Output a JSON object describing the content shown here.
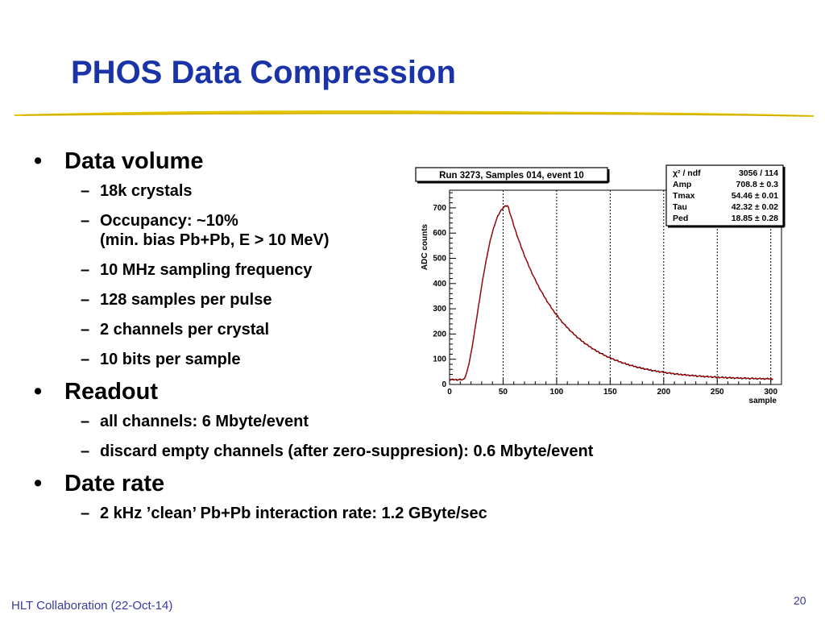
{
  "slide": {
    "title": "PHOS Data Compression",
    "footer": "HLT Collaboration (22-Oct-14)",
    "page_number": "20",
    "accent_color": "#1a34a8",
    "rule_color": "#e0b800"
  },
  "bullets": [
    {
      "text": "Data volume",
      "sub": [
        "18k crystals",
        "Occupancy: ~10%",
        "(min. bias Pb+Pb, E > 10 MeV)",
        "10 MHz sampling frequency",
        "128 samples per pulse",
        "2 channels per crystal",
        "10 bits per sample"
      ]
    },
    {
      "text": "Readout",
      "sub": [
        "all channels: 6 Mbyte/event",
        "discard empty channels (after zero-suppresion): 0.6 Mbyte/event"
      ]
    },
    {
      "text": "Date rate",
      "sub": [
        "2 kHz ’clean’ Pb+Pb interaction rate: 1.2 GByte/sec"
      ]
    }
  ],
  "chart_data": {
    "type": "line",
    "title": "Run 3273, Samples 014, event 10",
    "xlabel": "sample",
    "ylabel": "ADC counts",
    "xlim": [
      0,
      310
    ],
    "ylim": [
      0,
      770
    ],
    "x_ticks": [
      "0",
      "50",
      "100",
      "150",
      "200",
      "250",
      "300"
    ],
    "y_ticks": [
      "0",
      "100",
      "200",
      "300",
      "400",
      "500",
      "600",
      "700"
    ],
    "vertical_dashed_lines_at": [
      50,
      100,
      150,
      200,
      250,
      300
    ],
    "fit": {
      "amp": 708.8,
      "tmax": 54.46,
      "tau": 42.32,
      "ped": 18.85,
      "t0": 12
    },
    "stats_box": [
      {
        "label": "χ² / ndf",
        "value": "3056 / 114"
      },
      {
        "label": "Amp",
        "value": "708.8 ± 0.3"
      },
      {
        "label": "Tmax",
        "value": "54.46 ± 0.01"
      },
      {
        "label": "Tau",
        "value": "42.32 ± 0.02"
      },
      {
        "label": "Ped",
        "value": "18.85 ± 0.28"
      }
    ],
    "series": [
      {
        "name": "",
        "color": "#000000"
      },
      {
        "name": "",
        "color": "#cc0000"
      }
    ]
  }
}
